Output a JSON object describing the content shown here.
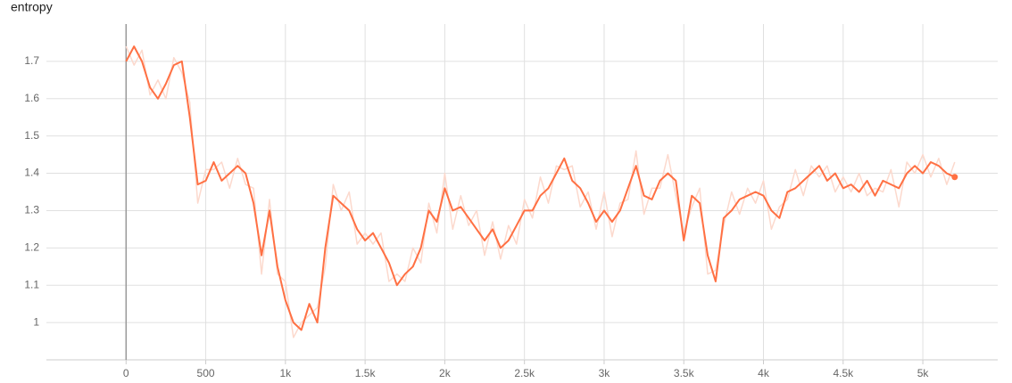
{
  "chart_data": {
    "type": "line",
    "title": "entropy",
    "x": [
      0,
      50,
      100,
      150,
      200,
      250,
      300,
      350,
      400,
      450,
      500,
      550,
      600,
      650,
      700,
      750,
      800,
      850,
      900,
      950,
      1000,
      1050,
      1100,
      1150,
      1200,
      1250,
      1300,
      1350,
      1400,
      1450,
      1500,
      1550,
      1600,
      1650,
      1700,
      1750,
      1800,
      1850,
      1900,
      1950,
      2000,
      2050,
      2100,
      2150,
      2200,
      2250,
      2300,
      2350,
      2400,
      2450,
      2500,
      2550,
      2600,
      2650,
      2700,
      2750,
      2800,
      2850,
      2900,
      2950,
      3000,
      3050,
      3100,
      3150,
      3200,
      3250,
      3300,
      3350,
      3400,
      3450,
      3500,
      3550,
      3600,
      3650,
      3700,
      3750,
      3800,
      3850,
      3900,
      3950,
      4000,
      4050,
      4100,
      4150,
      4200,
      4250,
      4300,
      4350,
      4400,
      4450,
      4500,
      4550,
      4600,
      4650,
      4700,
      4750,
      4800,
      4850,
      4900,
      4950,
      5000,
      5050,
      5100,
      5150,
      5200
    ],
    "series": [
      {
        "color": "#fcd9cd",
        "values": [
          1.74,
          1.69,
          1.73,
          1.61,
          1.65,
          1.6,
          1.71,
          1.67,
          1.59,
          1.32,
          1.41,
          1.41,
          1.43,
          1.36,
          1.44,
          1.37,
          1.36,
          1.13,
          1.33,
          1.13,
          1.11,
          0.96,
          1.0,
          1.02,
          1.04,
          1.15,
          1.37,
          1.3,
          1.35,
          1.21,
          1.24,
          1.21,
          1.24,
          1.11,
          1.13,
          1.11,
          1.2,
          1.16,
          1.32,
          1.24,
          1.4,
          1.25,
          1.34,
          1.26,
          1.3,
          1.18,
          1.27,
          1.17,
          1.26,
          1.21,
          1.33,
          1.28,
          1.39,
          1.32,
          1.42,
          1.41,
          1.42,
          1.31,
          1.35,
          1.25,
          1.35,
          1.23,
          1.32,
          1.33,
          1.46,
          1.29,
          1.36,
          1.36,
          1.45,
          1.34,
          1.24,
          1.31,
          1.36,
          1.13,
          1.14,
          1.26,
          1.35,
          1.29,
          1.36,
          1.32,
          1.38,
          1.25,
          1.31,
          1.33,
          1.41,
          1.34,
          1.42,
          1.39,
          1.42,
          1.35,
          1.39,
          1.35,
          1.4,
          1.34,
          1.36,
          1.35,
          1.41,
          1.31,
          1.43,
          1.4,
          1.45,
          1.39,
          1.44,
          1.37,
          1.43
        ]
      },
      {
        "color": "#ff7043",
        "values": [
          1.7,
          1.74,
          1.7,
          1.63,
          1.6,
          1.64,
          1.69,
          1.7,
          1.55,
          1.37,
          1.38,
          1.43,
          1.38,
          1.4,
          1.42,
          1.4,
          1.32,
          1.18,
          1.3,
          1.15,
          1.06,
          1.0,
          0.98,
          1.05,
          1.0,
          1.2,
          1.34,
          1.32,
          1.3,
          1.25,
          1.22,
          1.24,
          1.2,
          1.16,
          1.1,
          1.13,
          1.15,
          1.2,
          1.3,
          1.27,
          1.36,
          1.3,
          1.31,
          1.28,
          1.25,
          1.22,
          1.25,
          1.2,
          1.22,
          1.26,
          1.3,
          1.3,
          1.34,
          1.36,
          1.4,
          1.44,
          1.38,
          1.36,
          1.32,
          1.27,
          1.3,
          1.27,
          1.3,
          1.36,
          1.42,
          1.34,
          1.33,
          1.38,
          1.4,
          1.38,
          1.22,
          1.34,
          1.32,
          1.18,
          1.11,
          1.28,
          1.3,
          1.33,
          1.34,
          1.35,
          1.34,
          1.3,
          1.28,
          1.35,
          1.36,
          1.38,
          1.4,
          1.42,
          1.38,
          1.4,
          1.36,
          1.37,
          1.35,
          1.38,
          1.34,
          1.38,
          1.37,
          1.36,
          1.4,
          1.42,
          1.4,
          1.43,
          1.42,
          1.4,
          1.39
        ]
      }
    ],
    "xlim": [
      -500,
      5470
    ],
    "xticks": [
      0,
      500,
      {
        "value": 1000,
        "label": "1k"
      },
      {
        "value": 1500,
        "label": "1.5k"
      },
      {
        "value": 2000,
        "label": "2k"
      },
      {
        "value": 2500,
        "label": "2.5k"
      },
      {
        "value": 3000,
        "label": "3k"
      },
      {
        "value": 3500,
        "label": "3.5k"
      },
      {
        "value": 4000,
        "label": "4k"
      },
      {
        "value": 4500,
        "label": "4.5k"
      },
      {
        "value": 5000,
        "label": "5k"
      }
    ],
    "ylim": [
      0.9,
      1.8
    ],
    "yticks": [
      1,
      1.1,
      1.2,
      1.3,
      1.4,
      1.5,
      1.6,
      1.7
    ],
    "grid": true
  }
}
